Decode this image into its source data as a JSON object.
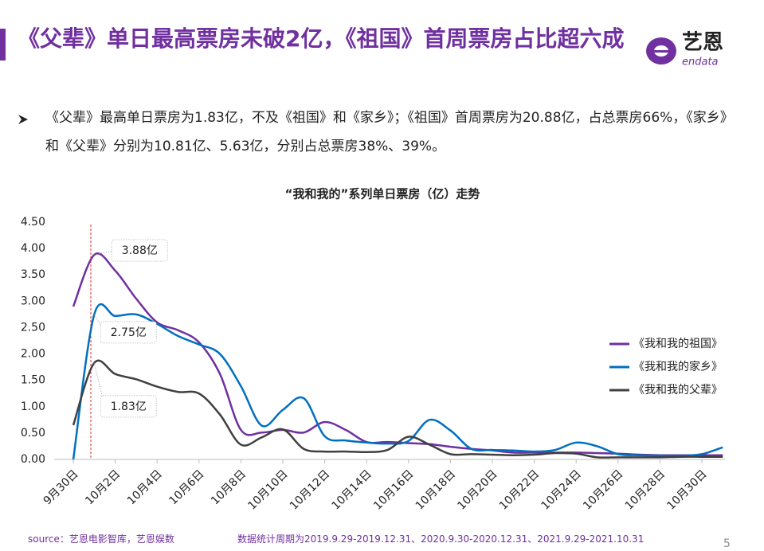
{
  "header": {
    "title": "《父辈》单日最高票房未破2亿，《祖国》首周票房占比超六成",
    "logo_text": "艺恩",
    "logo_sub": "endata"
  },
  "bullet": "《父辈》最高单日票房为1.83亿，不及《祖国》和《家乡》；《祖国》首周票房为20.88亿，占总票房66%，《家乡》和《父辈》分别为10.81亿、5.63亿，分别占总票房38%、39%。",
  "chart_data": {
    "type": "line",
    "title": "“我和我的”系列单日票房（亿）走势",
    "categories": [
      "9月30日",
      null,
      "10月2日",
      null,
      "10月4日",
      null,
      "10月6日",
      null,
      "10月8日",
      null,
      "10月10日",
      null,
      "10月12日",
      null,
      "10月14日",
      null,
      "10月16日",
      null,
      "10月18日",
      null,
      "10月20日",
      null,
      "10月22日",
      null,
      "10月24日",
      null,
      "10月26日",
      null,
      "10月28日",
      null,
      "10月30日",
      null
    ],
    "series": [
      {
        "name": "《我和我的祖国》",
        "color": "#7030a0",
        "values": [
          2.9,
          3.88,
          3.58,
          3.05,
          2.6,
          2.45,
          2.22,
          1.62,
          0.56,
          0.51,
          0.56,
          0.51,
          0.71,
          0.56,
          0.33,
          0.33,
          0.31,
          0.29,
          0.24,
          0.2,
          0.17,
          0.13,
          0.13,
          0.13,
          0.13,
          0.12,
          0.11,
          0.09,
          0.08,
          0.08,
          0.08,
          0.08
        ],
        "value_labels": [
          null,
          "3.88亿",
          null,
          null,
          null,
          null,
          null,
          null,
          null,
          null,
          null,
          null,
          null,
          null,
          null,
          null,
          null,
          null,
          null,
          null,
          null,
          null,
          null,
          null,
          null,
          null,
          null,
          null,
          null,
          null,
          null,
          null
        ]
      },
      {
        "name": "《我和我的家乡》",
        "color": "#0070c0",
        "values": [
          0.0,
          2.75,
          2.72,
          2.75,
          2.57,
          2.34,
          2.18,
          2.0,
          1.39,
          0.64,
          0.94,
          1.16,
          0.44,
          0.36,
          0.32,
          0.3,
          0.35,
          0.75,
          0.55,
          0.2,
          0.18,
          0.17,
          0.15,
          0.18,
          0.32,
          0.25,
          0.1,
          0.08,
          0.07,
          0.07,
          0.1,
          0.23
        ],
        "value_labels": [
          null,
          "2.75亿",
          null,
          null,
          null,
          null,
          null,
          null,
          null,
          null,
          null,
          null,
          null,
          null,
          null,
          null,
          null,
          null,
          null,
          null,
          null,
          null,
          null,
          null,
          null,
          null,
          null,
          null,
          null,
          null,
          null,
          null
        ]
      },
      {
        "name": "《我和我的父辈》",
        "color": "#404040",
        "values": [
          0.65,
          1.83,
          1.62,
          1.52,
          1.38,
          1.28,
          1.25,
          0.85,
          0.28,
          0.42,
          0.57,
          0.2,
          0.15,
          0.15,
          0.14,
          0.18,
          0.43,
          0.28,
          0.1,
          0.1,
          0.09,
          0.08,
          0.09,
          0.12,
          0.11,
          0.04,
          0.04,
          0.04,
          0.04,
          0.05,
          0.05,
          0.05
        ],
        "value_labels": [
          null,
          "1.83亿",
          null,
          null,
          null,
          null,
          null,
          null,
          null,
          null,
          null,
          null,
          null,
          null,
          null,
          null,
          null,
          null,
          null,
          null,
          null,
          null,
          null,
          null,
          null,
          null,
          null,
          null,
          null,
          null,
          null,
          null
        ]
      }
    ],
    "ylim": [
      0,
      4.5
    ],
    "yticks": [
      {
        "value": 0,
        "label": "0.00"
      },
      {
        "value": 0.5,
        "label": "0.50"
      },
      {
        "value": 1,
        "label": "1.00"
      },
      {
        "value": 1.5,
        "label": "1.50"
      },
      {
        "value": 2,
        "label": "2.00"
      },
      {
        "value": 2.5,
        "label": "2.50"
      },
      {
        "value": 3,
        "label": "3.00"
      },
      {
        "value": 3.5,
        "label": "3.50"
      },
      {
        "value": 4,
        "label": "4.00"
      },
      {
        "value": 4.5,
        "label": "4.50"
      }
    ],
    "grid": false,
    "legend": "right"
  },
  "footer": {
    "source": "source：艺恩电影智库，艺恩娱数",
    "period": "数据统计周期为2019.9.29-2019.12.31、2020.9.30-2020.12.31、2021.9.29-2021.10.31",
    "page": 5
  }
}
